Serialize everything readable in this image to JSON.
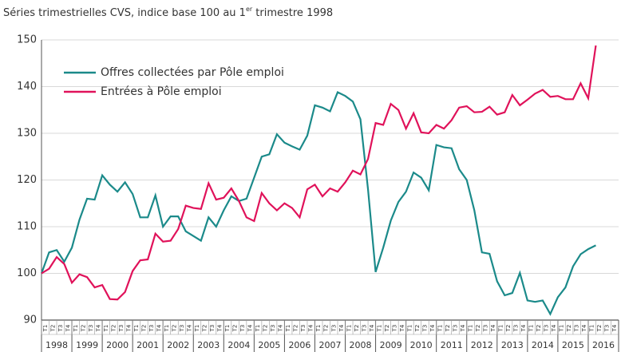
{
  "chart_data": {
    "type": "line",
    "title_parts": [
      "Séries trimestrielles CVS, indice base 100 au 1",
      "er",
      " trimestre 1998"
    ],
    "years": [
      "1998",
      "1999",
      "2000",
      "2001",
      "2002",
      "2003",
      "2004",
      "2005",
      "2006",
      "2007",
      "2008",
      "2009",
      "2010",
      "2011",
      "2012",
      "2013",
      "2014",
      "2015",
      "2016"
    ],
    "quarter_labels": [
      "T1",
      "T2",
      "T3",
      "T4"
    ],
    "ylim": [
      90,
      150
    ],
    "yticks": [
      90,
      100,
      110,
      120,
      130,
      140,
      150
    ],
    "grid": true,
    "legend": "upper left",
    "series": [
      {
        "name": "Offres collectées par Pôle emploi",
        "color": "#1b8a8a",
        "values": [
          100,
          104.5,
          105,
          102.5,
          105.5,
          111.5,
          116,
          115.8,
          121,
          119,
          117.5,
          119.5,
          117,
          112,
          112,
          116.7,
          110,
          112.2,
          112.2,
          109,
          108,
          107,
          112,
          110,
          113.5,
          116.5,
          115.5,
          116,
          120.5,
          125,
          125.5,
          129.8,
          128,
          127.2,
          126.5,
          129.5,
          136,
          135.5,
          134.7,
          138.8,
          138,
          136.8,
          133,
          118,
          100.3,
          105.5,
          111.3,
          115.3,
          117.5,
          121.6,
          120.5,
          117.8,
          127.5,
          127,
          126.8,
          122.3,
          120,
          113.5,
          104.5,
          104.2,
          98.3,
          95.3,
          95.8,
          100.1,
          94.2,
          93.9,
          94.2,
          91.3,
          94.9,
          97,
          101.5,
          104.1,
          105.2,
          106
        ]
      },
      {
        "name": "Entrées à Pôle emploi",
        "color": "#e0125a",
        "values": [
          100,
          101,
          103.5,
          102,
          98,
          99.8,
          99.2,
          97,
          97.5,
          94.5,
          94.4,
          96,
          100.5,
          102.8,
          103,
          108.5,
          106.8,
          107,
          109.5,
          114.5,
          114,
          113.8,
          119.3,
          115.8,
          116.2,
          118.2,
          115.5,
          112,
          111.2,
          117.2,
          115,
          113.5,
          115,
          114,
          112,
          118,
          119,
          116.5,
          118.2,
          117.5,
          119.5,
          122,
          121.2,
          124.5,
          132.2,
          131.8,
          136.3,
          135,
          131,
          134.3,
          130.2,
          130,
          131.8,
          131,
          132.8,
          135.5,
          135.8,
          134.5,
          134.6,
          135.7,
          134,
          134.5,
          138.2,
          136,
          137.2,
          138.5,
          139.3,
          137.8,
          138,
          137.3,
          137.3,
          140.7,
          137.5,
          148.8
        ]
      }
    ]
  }
}
